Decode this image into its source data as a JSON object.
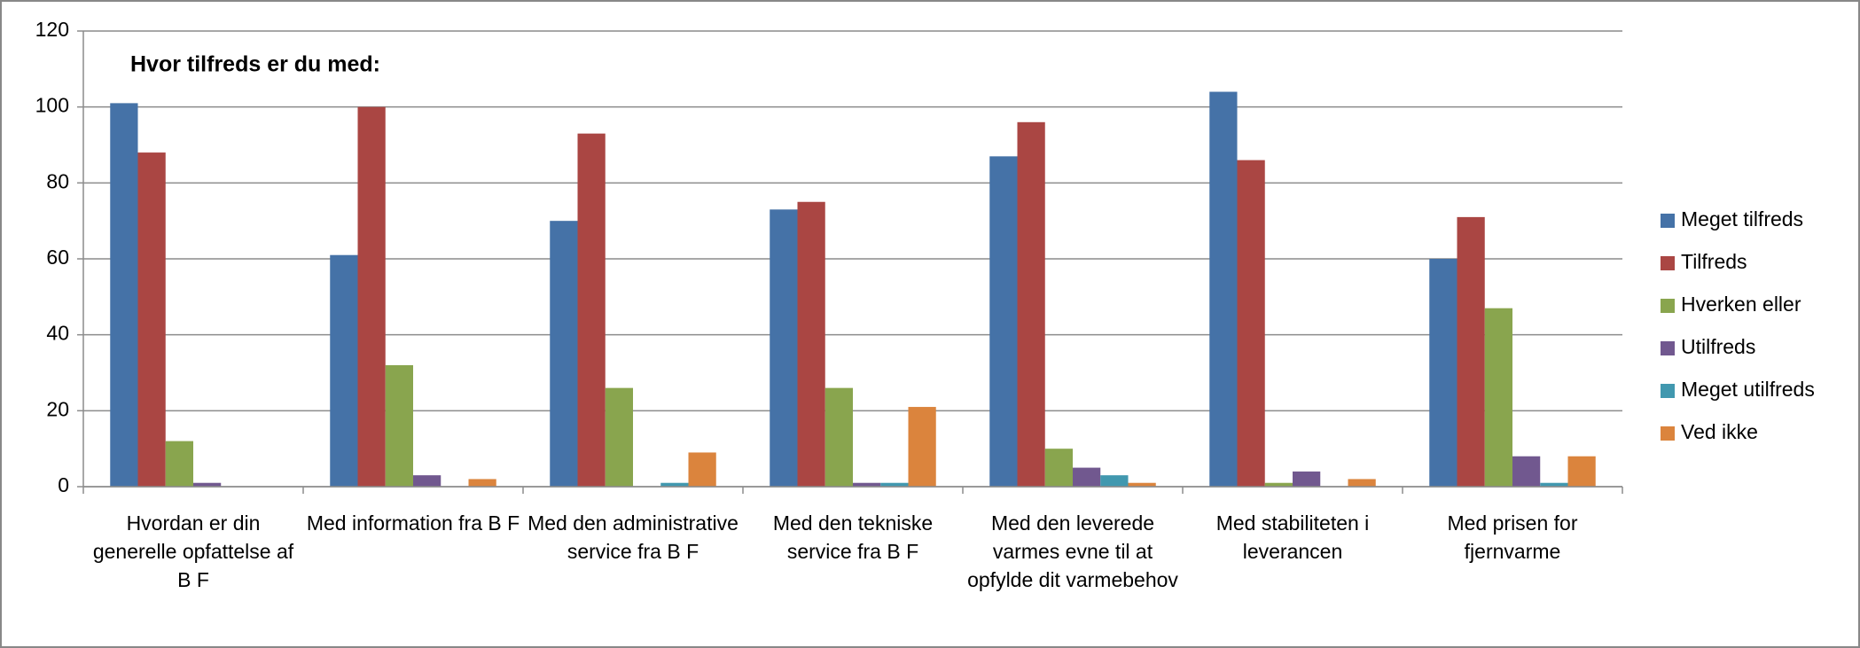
{
  "chart_data": {
    "type": "bar",
    "title": "Hvor tilfreds er du med:",
    "categories": [
      "Hvordan er din generelle opfattelse af B F",
      "Med information fra B F",
      "Med den administrative service fra B F",
      "Med den tekniske service fra B F",
      "Med den leverede varmes evne til at opfylde dit varmebehov",
      "Med stabiliteten i leverancen",
      "Med prisen for fjernvarme"
    ],
    "series": [
      {
        "name": "Meget tilfreds",
        "color": "#4572a7",
        "values": [
          101,
          61,
          70,
          73,
          87,
          104,
          60
        ]
      },
      {
        "name": "Tilfreds",
        "color": "#aa4643",
        "values": [
          88,
          100,
          93,
          75,
          96,
          86,
          71
        ]
      },
      {
        "name": "Hverken eller",
        "color": "#89a54e",
        "values": [
          12,
          32,
          26,
          26,
          10,
          1,
          47
        ]
      },
      {
        "name": "Utilfreds",
        "color": "#71588f",
        "values": [
          1,
          3,
          0,
          1,
          5,
          4,
          8
        ]
      },
      {
        "name": "Meget utilfreds",
        "color": "#4198af",
        "values": [
          0,
          0,
          1,
          1,
          3,
          0,
          1
        ]
      },
      {
        "name": "Ved ikke",
        "color": "#db843d",
        "values": [
          0,
          2,
          9,
          21,
          1,
          2,
          8
        ]
      }
    ],
    "ylim": [
      0,
      120
    ],
    "yticks": [
      0,
      20,
      40,
      60,
      80,
      100,
      120
    ],
    "grid": true,
    "legend": "right"
  }
}
